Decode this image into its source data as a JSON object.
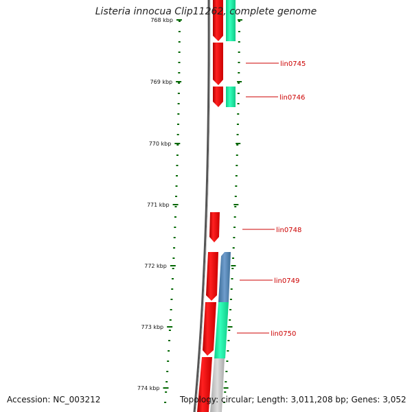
{
  "title": "Listeria innocua Clip11262, complete genome",
  "footer": {
    "accession": "Accession: NC_003212",
    "topology": "Topology: circular; Length: 3,011,208 bp; Genes: 3,052"
  },
  "ruler": {
    "unit": "kbp",
    "ticks": [
      "768 kbp",
      "769 kbp",
      "770 kbp",
      "771 kbp",
      "772 kbp",
      "773 kbp",
      "774 kbp"
    ]
  },
  "genes": [
    {
      "label": "lin0745"
    },
    {
      "label": "lin0746"
    },
    {
      "label": "lin0748"
    },
    {
      "label": "lin0749"
    },
    {
      "label": "lin0750"
    }
  ],
  "colors": {
    "forward_cds": "#ee1111",
    "reverse_cds": "#00ee99",
    "other_feature": "#5588bb",
    "backbone": "#777777",
    "tick": "#006600",
    "label": "#cc0000"
  }
}
